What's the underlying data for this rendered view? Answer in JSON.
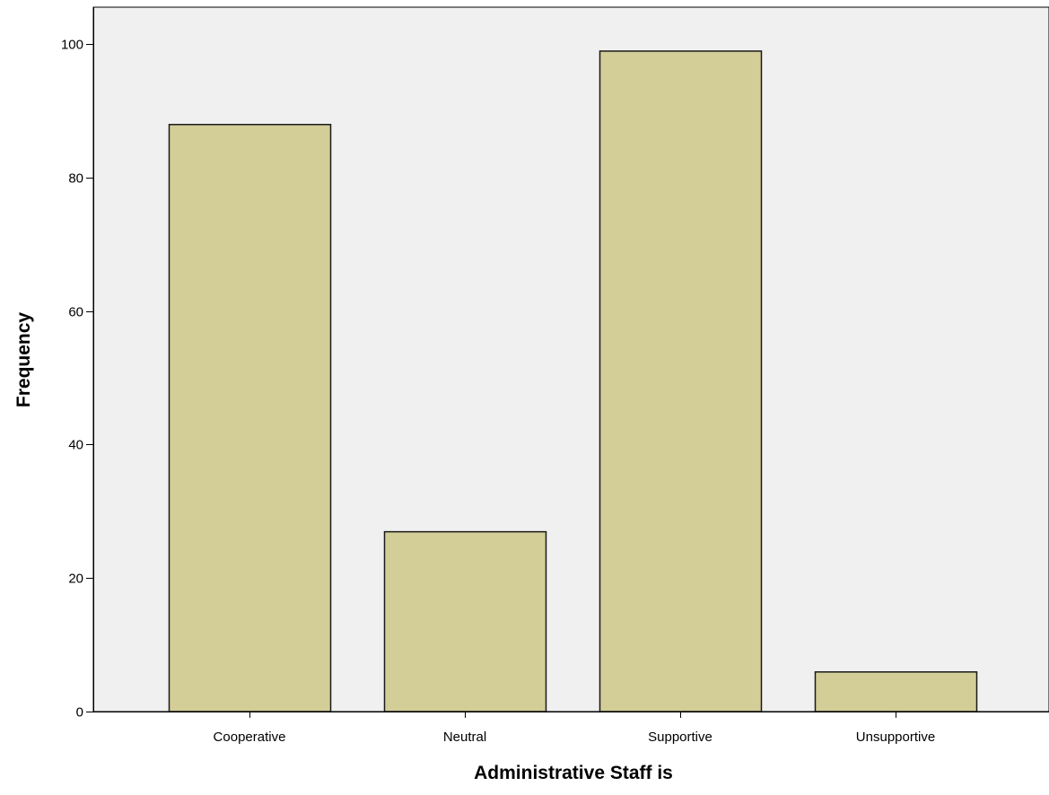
{
  "chart_data": {
    "type": "bar",
    "categories": [
      "Cooperative",
      "Neutral",
      "Supportive",
      "Unsupportive"
    ],
    "values": [
      88,
      27,
      99,
      6
    ],
    "title": "",
    "xlabel": "Administrative Staff is",
    "ylabel": "Frequency",
    "ylim": [
      0,
      105
    ],
    "yticks": [
      0,
      20,
      40,
      60,
      80,
      100
    ],
    "grid": false,
    "legend": "none",
    "colors": {
      "bar_fill": "#d3cd97",
      "bar_stroke": "#1a1a1a",
      "plot_background": "#f0f0f0",
      "page_background": "#ffffff",
      "axis": "#000000",
      "text": "#000000"
    }
  }
}
